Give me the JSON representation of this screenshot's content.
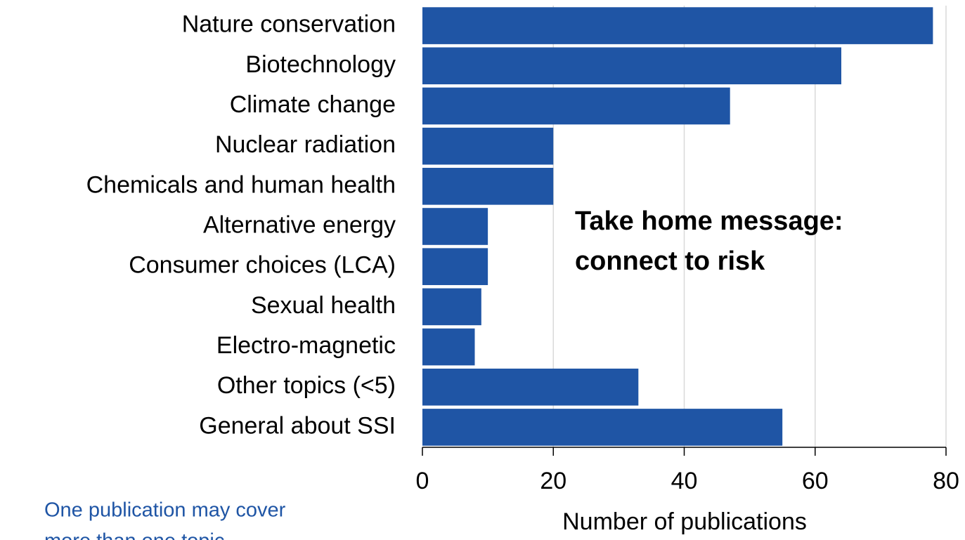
{
  "chart_data": {
    "type": "bar",
    "orientation": "horizontal",
    "categories": [
      "Nature conservation",
      "Biotechnology",
      "Climate change",
      "Nuclear radiation",
      "Chemicals and human health",
      "Alternative energy",
      "Consumer choices (LCA)",
      "Sexual health",
      "Electro-magnetic",
      "Other topics (<5)",
      "General about SSI"
    ],
    "values": [
      78,
      64,
      47,
      20,
      20,
      10,
      10,
      9,
      8,
      33,
      55
    ],
    "color": "#1f55a5",
    "xlabel": "Number of publications",
    "xlim": [
      0,
      80
    ],
    "xticks": [
      0,
      20,
      40,
      60,
      80
    ],
    "grid": true,
    "annotation": [
      "Take home message:",
      "connect to risk"
    ],
    "note": [
      "One publication may cover",
      "more than one topic"
    ]
  }
}
